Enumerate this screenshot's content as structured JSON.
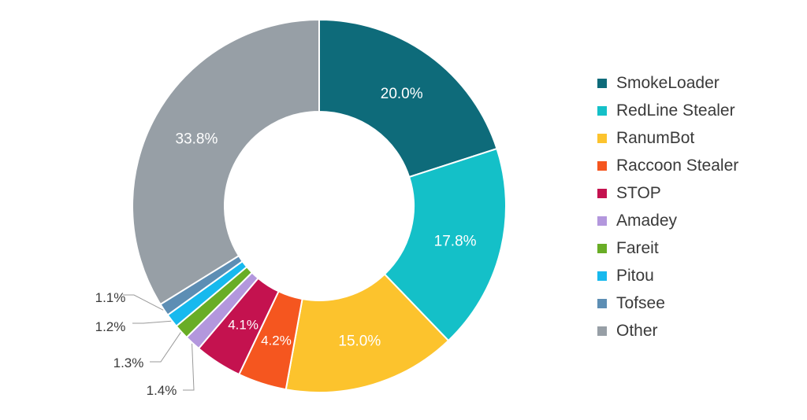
{
  "chart_data": {
    "type": "pie",
    "variant": "donut",
    "legend_position": "right",
    "slices": [
      {
        "label": "SmokeLoader",
        "value": 20.0,
        "display": "20.0%",
        "color": "#0e6b7a"
      },
      {
        "label": "RedLine Stealer",
        "value": 17.8,
        "display": "17.8%",
        "color": "#14c0c8"
      },
      {
        "label": "RanumBot",
        "value": 15.0,
        "display": "15.0%",
        "color": "#fcc32d"
      },
      {
        "label": "Raccoon Stealer",
        "value": 4.2,
        "display": "4.2%",
        "color": "#f5561f"
      },
      {
        "label": "STOP",
        "value": 4.1,
        "display": "4.1%",
        "color": "#c4124f"
      },
      {
        "label": "Amadey",
        "value": 1.4,
        "display": "1.4%",
        "color": "#b397dd"
      },
      {
        "label": "Fareit",
        "value": 1.3,
        "display": "1.3%",
        "color": "#69ad26"
      },
      {
        "label": "Pitou",
        "value": 1.2,
        "display": "1.2%",
        "color": "#17b9ee"
      },
      {
        "label": "Tofsee",
        "value": 1.1,
        "display": "1.1%",
        "color": "#5d8eb4"
      },
      {
        "label": "Other",
        "value": 33.8,
        "display": "33.8%",
        "color": "#979fa6"
      }
    ]
  }
}
